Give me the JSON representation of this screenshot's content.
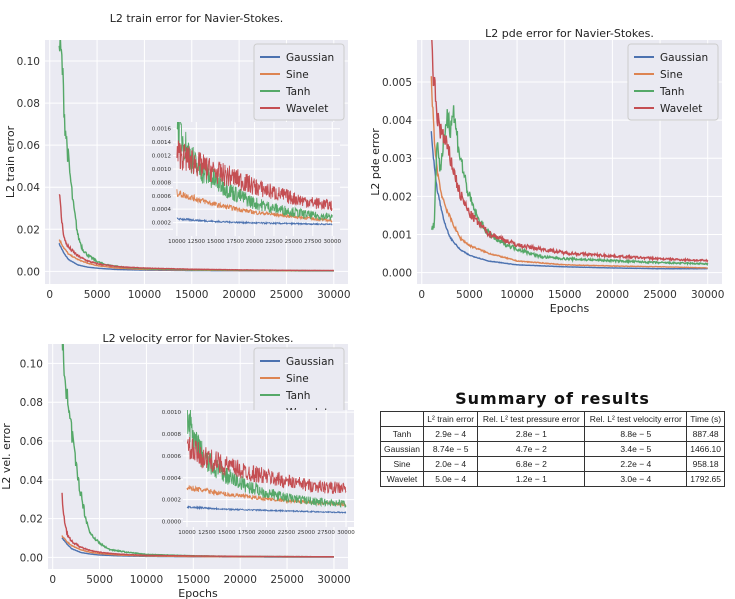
{
  "chart_data": [
    {
      "type": "line",
      "id": "train",
      "title": "L2 train error for Navier-Stokes.",
      "xlabel": "",
      "ylabel": "L2 train error",
      "xlim": [
        -500,
        31500
      ],
      "ylim": [
        -0.006,
        0.11
      ],
      "xticks": [
        "0",
        "5000",
        "10000",
        "15000",
        "20000",
        "25000",
        "30000"
      ],
      "yticks": [
        "0.00",
        "0.02",
        "0.04",
        "0.06",
        "0.08",
        "0.10"
      ],
      "legend": "top-right",
      "grid": true,
      "series": [
        {
          "name": "Gaussian",
          "color": "#4c72b0",
          "x": [
            1000,
            1500,
            2000,
            3000,
            4000,
            5000,
            7000,
            10000,
            15000,
            20000,
            25000,
            30000
          ],
          "y": [
            0.013,
            0.0085,
            0.0055,
            0.003,
            0.002,
            0.0015,
            0.0009,
            0.0006,
            0.0004,
            0.0003,
            0.00025,
            0.0002
          ]
        },
        {
          "name": "Sine",
          "color": "#dd8452",
          "x": [
            1000,
            1500,
            2000,
            3000,
            4000,
            5000,
            7000,
            10000,
            15000,
            20000,
            25000,
            30000
          ],
          "y": [
            0.015,
            0.011,
            0.008,
            0.0055,
            0.0038,
            0.0027,
            0.0016,
            0.0009,
            0.0006,
            0.0004,
            0.0003,
            0.00025
          ]
        },
        {
          "name": "Tanh",
          "color": "#55a868",
          "x": [
            1000,
            1300,
            1600,
            2000,
            2500,
            3000,
            3500,
            4000,
            5000,
            6000,
            8000,
            10000,
            15000,
            20000,
            25000,
            30000
          ],
          "y": [
            0.105,
            0.096,
            0.068,
            0.05,
            0.03,
            0.016,
            0.01,
            0.0075,
            0.0045,
            0.003,
            0.0018,
            0.0012,
            0.0008,
            0.0005,
            0.0004,
            0.0003
          ]
        },
        {
          "name": "Wavelet",
          "color": "#c44e52",
          "x": [
            1000,
            1300,
            1600,
            2000,
            2500,
            3000,
            4000,
            5000,
            7000,
            10000,
            15000,
            20000,
            25000,
            30000
          ],
          "y": [
            0.036,
            0.022,
            0.014,
            0.011,
            0.009,
            0.007,
            0.0048,
            0.0035,
            0.0022,
            0.0015,
            0.001,
            0.0007,
            0.0005,
            0.0004
          ]
        }
      ],
      "inset": {
        "xlim": [
          9500,
          31000
        ],
        "ylim": [
          0,
          0.0017
        ],
        "xticks": [
          "10000",
          "12500",
          "15000",
          "17500",
          "20000",
          "22500",
          "25000",
          "27500",
          "30000"
        ],
        "yticks": [
          "0.0002",
          "0.0004",
          "0.0006",
          "0.0008",
          "0.0010",
          "0.0012",
          "0.0014",
          "0.0016"
        ],
        "series": [
          {
            "name": "Gaussian",
            "x": [
              10000,
              15000,
              20000,
              25000,
              30000
            ],
            "y": [
              0.00025,
              0.00021,
              0.00019,
              0.00018,
              0.00017
            ]
          },
          {
            "name": "Sine",
            "x": [
              10000,
              15000,
              20000,
              25000,
              30000
            ],
            "y": [
              0.00062,
              0.00045,
              0.00034,
              0.00028,
              0.00022
            ]
          },
          {
            "name": "Tanh",
            "x": [
              10000,
              11000,
              12500,
              15000,
              17500,
              20000,
              22500,
              25000,
              27500,
              30000
            ],
            "y": [
              0.0016,
              0.00125,
              0.00095,
              0.00075,
              0.00058,
              0.00045,
              0.00038,
              0.00033,
              0.00028,
              0.00026
            ]
          },
          {
            "name": "Wavelet",
            "x": [
              10000,
              12500,
              15000,
              17500,
              20000,
              22500,
              25000,
              27500,
              30000
            ],
            "y": [
              0.00115,
              0.001,
              0.00088,
              0.0008,
              0.00068,
              0.0006,
              0.00052,
              0.00046,
              0.00042
            ]
          }
        ]
      }
    },
    {
      "type": "line",
      "id": "pde",
      "title": "L2 pde error for Navier-Stokes.",
      "xlabel": "Epochs",
      "ylabel": "L2 pde error",
      "xlim": [
        -500,
        31500
      ],
      "ylim": [
        -0.0003,
        0.0061
      ],
      "xticks": [
        "0",
        "5000",
        "10000",
        "15000",
        "20000",
        "25000",
        "30000"
      ],
      "yticks": [
        "0.000",
        "0.001",
        "0.002",
        "0.003",
        "0.004",
        "0.005"
      ],
      "legend": "top-right",
      "grid": true,
      "series": [
        {
          "name": "Gaussian",
          "color": "#4c72b0",
          "x": [
            1000,
            1300,
            1600,
            2000,
            2500,
            3000,
            4000,
            5000,
            7000,
            10000,
            15000,
            20000,
            25000,
            30000
          ],
          "y": [
            0.0036,
            0.0028,
            0.0022,
            0.0017,
            0.0012,
            0.0009,
            0.0006,
            0.00045,
            0.0003,
            0.0002,
            0.00015,
            0.00012,
            0.0001,
            0.0001
          ]
        },
        {
          "name": "Sine",
          "color": "#dd8452",
          "x": [
            1000,
            1300,
            1600,
            2000,
            2500,
            3000,
            4000,
            5000,
            7000,
            10000,
            15000,
            20000,
            25000,
            30000
          ],
          "y": [
            0.005,
            0.0035,
            0.0027,
            0.0021,
            0.0017,
            0.0014,
            0.0009,
            0.0007,
            0.0005,
            0.0003,
            0.0002,
            0.00017,
            0.00015,
            0.00012
          ]
        },
        {
          "name": "Tanh",
          "color": "#55a868",
          "x": [
            1000,
            1300,
            1600,
            2000,
            2500,
            2800,
            3000,
            3300,
            3600,
            4000,
            4500,
            5000,
            6000,
            7000,
            8000,
            10000,
            12500,
            15000,
            20000,
            25000,
            30000
          ],
          "y": [
            0.0011,
            0.0012,
            0.0034,
            0.0025,
            0.0038,
            0.004,
            0.0037,
            0.0041,
            0.0036,
            0.003,
            0.0024,
            0.0019,
            0.0013,
            0.001,
            0.0008,
            0.0006,
            0.0004,
            0.00035,
            0.0003,
            0.00025,
            0.00022
          ]
        },
        {
          "name": "Wavelet",
          "color": "#c44e52",
          "x": [
            1000,
            1300,
            1600,
            2000,
            2500,
            3000,
            4000,
            5000,
            7000,
            10000,
            15000,
            20000,
            25000,
            30000
          ],
          "y": [
            0.0057,
            0.0048,
            0.004,
            0.0036,
            0.0033,
            0.0029,
            0.002,
            0.0015,
            0.001,
            0.0007,
            0.0005,
            0.00042,
            0.00035,
            0.0003
          ]
        }
      ]
    },
    {
      "type": "line",
      "id": "vel",
      "title": "L2 velocity error for Navier-Stokes.",
      "xlabel": "Epochs",
      "ylabel": "L2 vel. error",
      "xlim": [
        -500,
        31500
      ],
      "ylim": [
        -0.006,
        0.11
      ],
      "xticks": [
        "0",
        "5000",
        "10000",
        "15000",
        "20000",
        "25000",
        "30000"
      ],
      "yticks": [
        "0.00",
        "0.02",
        "0.04",
        "0.06",
        "0.08",
        "0.10"
      ],
      "legend": "top-right",
      "grid": true,
      "series": [
        {
          "name": "Gaussian",
          "color": "#4c72b0",
          "x": [
            1000,
            1500,
            2000,
            3000,
            4000,
            5000,
            7000,
            10000,
            15000,
            20000,
            25000,
            30000
          ],
          "y": [
            0.01,
            0.007,
            0.0045,
            0.0025,
            0.0017,
            0.0012,
            0.0008,
            0.0005,
            0.0003,
            0.00022,
            0.00017,
            0.00014
          ]
        },
        {
          "name": "Sine",
          "color": "#dd8452",
          "x": [
            1000,
            1500,
            2000,
            3000,
            4000,
            5000,
            7000,
            10000,
            15000,
            20000,
            25000,
            30000
          ],
          "y": [
            0.011,
            0.008,
            0.006,
            0.0038,
            0.0026,
            0.0019,
            0.0012,
            0.0007,
            0.0004,
            0.0003,
            0.00025,
            0.0002
          ]
        },
        {
          "name": "Tanh",
          "color": "#55a868",
          "x": [
            1000,
            1300,
            1600,
            2000,
            2500,
            3000,
            3500,
            4000,
            5000,
            6000,
            8000,
            10000,
            15000,
            20000,
            25000,
            30000
          ],
          "y": [
            0.104,
            0.096,
            0.075,
            0.063,
            0.045,
            0.032,
            0.02,
            0.012,
            0.007,
            0.004,
            0.0025,
            0.0015,
            0.0008,
            0.0005,
            0.0004,
            0.0003
          ]
        },
        {
          "name": "Wavelet",
          "color": "#c44e52",
          "x": [
            1000,
            1300,
            1600,
            2000,
            2500,
            3000,
            4000,
            5000,
            7000,
            10000,
            15000,
            20000,
            25000,
            30000
          ],
          "y": [
            0.03,
            0.017,
            0.011,
            0.008,
            0.0065,
            0.005,
            0.0034,
            0.0025,
            0.0016,
            0.001,
            0.0007,
            0.0005,
            0.0004,
            0.0003
          ]
        }
      ],
      "inset": {
        "xlim": [
          9500,
          31000
        ],
        "ylim": [
          -5e-05,
          0.00102
        ],
        "xticks": [
          "10000",
          "12500",
          "15000",
          "17500",
          "20000",
          "22500",
          "25000",
          "27500",
          "30000"
        ],
        "yticks": [
          "0.0000",
          "0.0002",
          "0.0004",
          "0.0006",
          "0.0008",
          "0.0010"
        ],
        "series": [
          {
            "name": "Gaussian",
            "x": [
              10000,
              15000,
              20000,
              25000,
              30000
            ],
            "y": [
              0.00013,
              0.00011,
              0.0001,
              9e-05,
              8e-05
            ]
          },
          {
            "name": "Sine",
            "x": [
              10000,
              15000,
              20000,
              25000,
              30000
            ],
            "y": [
              0.0003,
              0.00024,
              0.0002,
              0.00017,
              0.00015
            ]
          },
          {
            "name": "Tanh",
            "x": [
              10000,
              11000,
              12500,
              15000,
              17500,
              20000,
              22500,
              25000,
              27500,
              30000
            ],
            "y": [
              0.00093,
              0.00065,
              0.0005,
              0.00038,
              0.0003,
              0.00024,
              0.0002,
              0.00018,
              0.00016,
              0.00015
            ]
          },
          {
            "name": "Wavelet",
            "x": [
              10000,
              12500,
              15000,
              17500,
              20000,
              22500,
              25000,
              27500,
              30000
            ],
            "y": [
              0.00062,
              0.00053,
              0.00047,
              0.00042,
              0.00038,
              0.00034,
              0.00031,
              0.00029,
              0.00028
            ]
          }
        ]
      }
    }
  ],
  "summary": {
    "title": "Summary of results",
    "headers": [
      "",
      "L² train error",
      "Rel. L² test pressure error",
      "Rel. L² test velocity error",
      "Time (s)"
    ],
    "rows": [
      [
        "Tanh",
        "2.9e − 4",
        "2.8e − 1",
        "8.8e − 5",
        "887.48"
      ],
      [
        "Gaussian",
        "8.74e − 5",
        "4.7e − 2",
        "3.4e − 5",
        "1466.10"
      ],
      [
        "Sine",
        "2.0e − 4",
        "6.8e − 2",
        "2.2e − 4",
        "958.18"
      ],
      [
        "Wavelet",
        "5.0e − 4",
        "1.2e − 1",
        "3.0e − 4",
        "1792.65"
      ]
    ]
  }
}
